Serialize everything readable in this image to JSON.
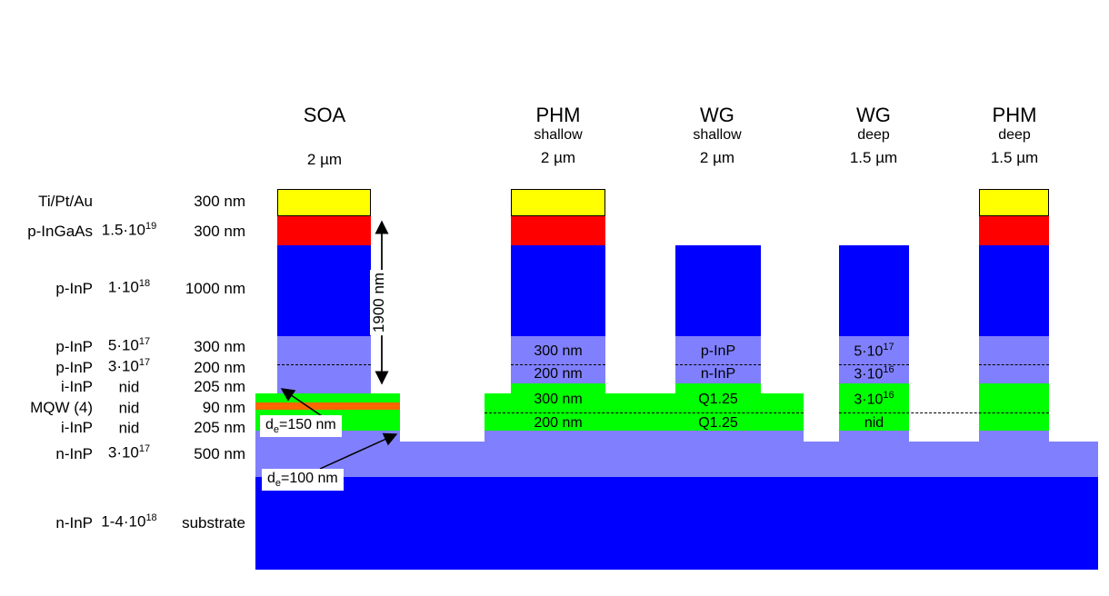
{
  "columns": [
    {
      "name": "SOA",
      "sub": "",
      "width": "2 µm"
    },
    {
      "name": "PHM",
      "sub": "shallow",
      "width": "2 µm"
    },
    {
      "name": "WG",
      "sub": "shallow",
      "width": "2 µm"
    },
    {
      "name": "WG",
      "sub": "deep",
      "width": "1.5 µm"
    },
    {
      "name": "PHM",
      "sub": "deep",
      "width": "1.5 µm"
    }
  ],
  "layers": [
    {
      "material": "Ti/Pt/Au",
      "doping_base": "",
      "doping_exp": "",
      "thickness": "300 nm"
    },
    {
      "material": "p-InGaAs",
      "doping_base": "1.5·10",
      "doping_exp": "19",
      "thickness": "300 nm"
    },
    {
      "material": "p-InP",
      "doping_base": "1·10",
      "doping_exp": "18",
      "thickness": "1000 nm"
    },
    {
      "material": "p-InP",
      "doping_base": "5·10",
      "doping_exp": "17",
      "thickness": "300 nm"
    },
    {
      "material": "p-InP",
      "doping_base": "3·10",
      "doping_exp": "17",
      "thickness": "200 nm"
    },
    {
      "material": "i-InP",
      "doping_base": "nid",
      "doping_exp": "",
      "thickness": "205 nm"
    },
    {
      "material": "MQW (4)",
      "doping_base": "nid",
      "doping_exp": "",
      "thickness": "90 nm"
    },
    {
      "material": "i-InP",
      "doping_base": "nid",
      "doping_exp": "",
      "thickness": "205 nm"
    },
    {
      "material": "n-InP",
      "doping_base": "3·10",
      "doping_exp": "17",
      "thickness": "500 nm"
    },
    {
      "material": "n-InP",
      "doping_base": "1-4·10",
      "doping_exp": "18",
      "thickness": "substrate"
    }
  ],
  "phm_shallow": {
    "t1": "300 nm",
    "t2": "200 nm",
    "t3": "300 nm",
    "t4": "200 nm"
  },
  "wg_shallow": {
    "m1": "p-InP",
    "m2": "n-InP",
    "m3": "Q1.25",
    "m4": "Q1.25"
  },
  "wg_deep": {
    "d1_base": "5·10",
    "d1_exp": "17",
    "d2_base": "3·10",
    "d2_exp": "16",
    "d3_base": "3·10",
    "d3_exp": "16",
    "d4": "nid"
  },
  "annotations": {
    "height": "1900 nm",
    "de1_prefix": "d",
    "de1_sub": "e",
    "de1_rest": "=150 nm",
    "de2_prefix": "d",
    "de2_sub": "e",
    "de2_rest": "=100 nm"
  },
  "colors": {
    "metal": "#ffff00",
    "ingaas": "#ff0000",
    "p_inp": "#0000ff",
    "light_inp": "#8080ff",
    "q_layer": "#00ff00",
    "mqw": "#ff6600",
    "substrate": "#0000ff"
  }
}
